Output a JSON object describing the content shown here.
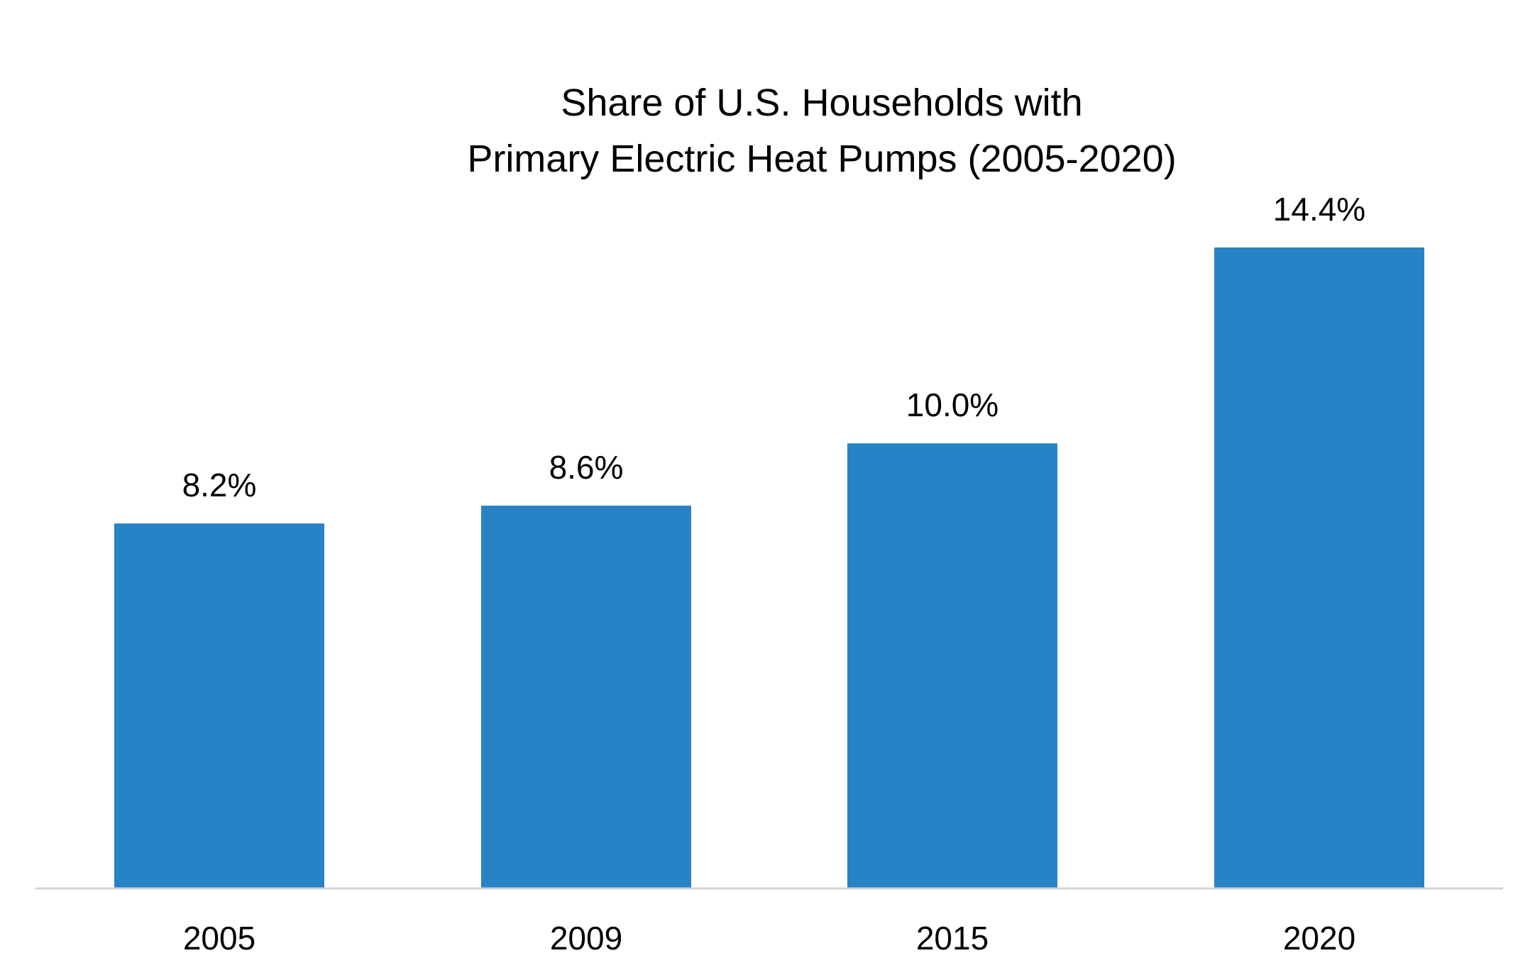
{
  "chart_data": {
    "type": "bar",
    "title_lines": [
      "Share of U.S. Households with",
      "Primary Electric Heat Pumps (2005-2020)"
    ],
    "categories": [
      "2005",
      "2009",
      "2015",
      "2020"
    ],
    "values": [
      8.2,
      8.6,
      10.0,
      14.4
    ],
    "data_labels": [
      "8.2%",
      "8.6%",
      "10.0%",
      "14.4%"
    ],
    "xlabel": "",
    "ylabel": "",
    "ylim": [
      0,
      14.4
    ],
    "grid": false,
    "legend": "none",
    "colors": {
      "bar": "#2882c6",
      "axis": "#d4d4d4",
      "text": "#000000"
    }
  }
}
